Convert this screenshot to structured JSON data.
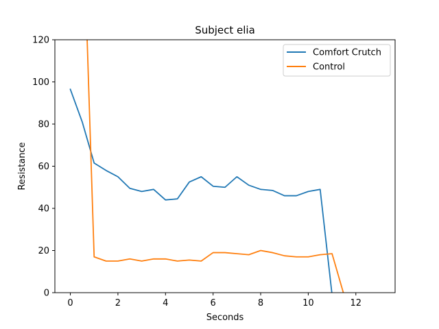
{
  "chart_data": {
    "type": "line",
    "title": "Subject elia",
    "xlabel": "Seconds",
    "ylabel": "Resistance",
    "xlim": [
      -0.65,
      13.65
    ],
    "ylim": [
      0,
      120
    ],
    "xticks": [
      0,
      2,
      4,
      6,
      8,
      10,
      12
    ],
    "yticks": [
      0,
      20,
      40,
      60,
      80,
      100,
      120
    ],
    "grid": false,
    "legend_position": "top-right",
    "series": [
      {
        "name": "Comfort Crutch",
        "color": "#1f77b4",
        "x": [
          0,
          0.5,
          1,
          1.5,
          2,
          2.5,
          3,
          3.5,
          4,
          4.5,
          5,
          5.5,
          6,
          6.5,
          7,
          7.5,
          8,
          8.5,
          9,
          9.5,
          10,
          10.5,
          11
        ],
        "y": [
          96.5,
          81,
          61.5,
          58,
          55,
          49.5,
          48,
          49,
          44,
          44.5,
          52.5,
          55,
          50.5,
          50,
          55,
          51,
          49,
          48.5,
          46,
          46,
          48,
          49,
          -1
        ]
      },
      {
        "name": "Control",
        "color": "#ff7f0e",
        "x": [
          0.65,
          1,
          1.5,
          2,
          2.5,
          3,
          3.5,
          4,
          4.5,
          5,
          5.5,
          6,
          6.5,
          7,
          7.5,
          8,
          8.5,
          9,
          9.5,
          10,
          10.5,
          11,
          11.5,
          12,
          12.5,
          13
        ],
        "y": [
          140,
          17,
          15,
          15,
          16,
          15,
          16,
          16,
          15,
          15.5,
          15,
          19,
          19,
          18.5,
          18,
          20,
          19,
          17.5,
          17,
          17,
          18,
          18.5,
          -1,
          -1,
          -1,
          -1
        ]
      }
    ]
  }
}
